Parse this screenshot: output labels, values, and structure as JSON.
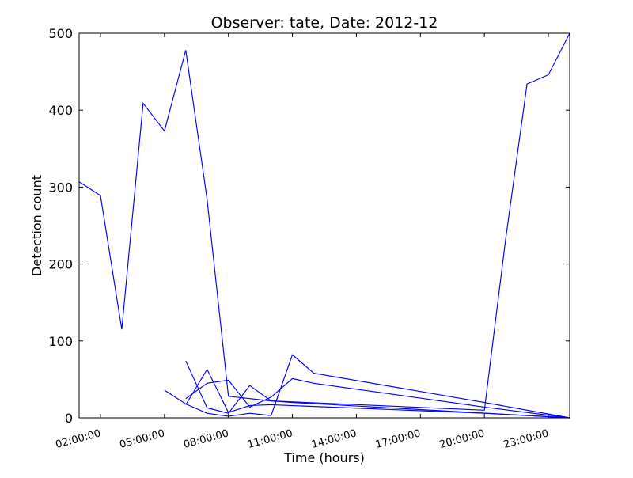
{
  "chart_data": {
    "type": "line",
    "title": "Observer: tate, Date: 2012-12",
    "xlabel": "Time (hours)",
    "ylabel": "Detection count",
    "x_unit": "hours",
    "xlim": [
      1,
      24
    ],
    "ylim": [
      0,
      500
    ],
    "xticks": [
      {
        "value": 2,
        "label": "02:00:00"
      },
      {
        "value": 5,
        "label": "05:00:00"
      },
      {
        "value": 8,
        "label": "08:00:00"
      },
      {
        "value": 11,
        "label": "11:00:00"
      },
      {
        "value": 14,
        "label": "14:00:00"
      },
      {
        "value": 17,
        "label": "17:00:00"
      },
      {
        "value": 20,
        "label": "20:00:00"
      },
      {
        "value": 23,
        "label": "23:00:00"
      }
    ],
    "yticks": [
      0,
      100,
      200,
      300,
      400,
      500
    ],
    "grid": false,
    "legend": false,
    "line_color": "#0000ff",
    "series": [
      {
        "points": [
          [
            1,
            307
          ],
          [
            2,
            289
          ],
          [
            3,
            115
          ],
          [
            4,
            409
          ],
          [
            5,
            373
          ],
          [
            6,
            478
          ],
          [
            7,
            284
          ],
          [
            8,
            28
          ],
          [
            9,
            25
          ],
          [
            10,
            22
          ],
          [
            20,
            10
          ],
          [
            21,
            233
          ],
          [
            22,
            434
          ],
          [
            23,
            446
          ],
          [
            24,
            500
          ]
        ]
      },
      {
        "points": [
          [
            6,
            74
          ],
          [
            7,
            13
          ],
          [
            8,
            6
          ],
          [
            9,
            42
          ],
          [
            10,
            22
          ],
          [
            11,
            20
          ],
          [
            24,
            0
          ]
        ]
      },
      {
        "points": [
          [
            6,
            17
          ],
          [
            7,
            63
          ],
          [
            8,
            7
          ],
          [
            9,
            16
          ],
          [
            10,
            17
          ],
          [
            20,
            6
          ],
          [
            24,
            0
          ]
        ]
      },
      {
        "points": [
          [
            6,
            25
          ],
          [
            7,
            45
          ],
          [
            8,
            49
          ],
          [
            9,
            14
          ],
          [
            10,
            27
          ],
          [
            11,
            51
          ],
          [
            12,
            45
          ],
          [
            20,
            14
          ],
          [
            24,
            0
          ]
        ]
      },
      {
        "points": [
          [
            5,
            36
          ],
          [
            6,
            18
          ],
          [
            7,
            6
          ],
          [
            8,
            2
          ],
          [
            9,
            6
          ],
          [
            10,
            3
          ],
          [
            11,
            82
          ],
          [
            12,
            58
          ],
          [
            20,
            20
          ],
          [
            24,
            0
          ]
        ]
      }
    ]
  }
}
